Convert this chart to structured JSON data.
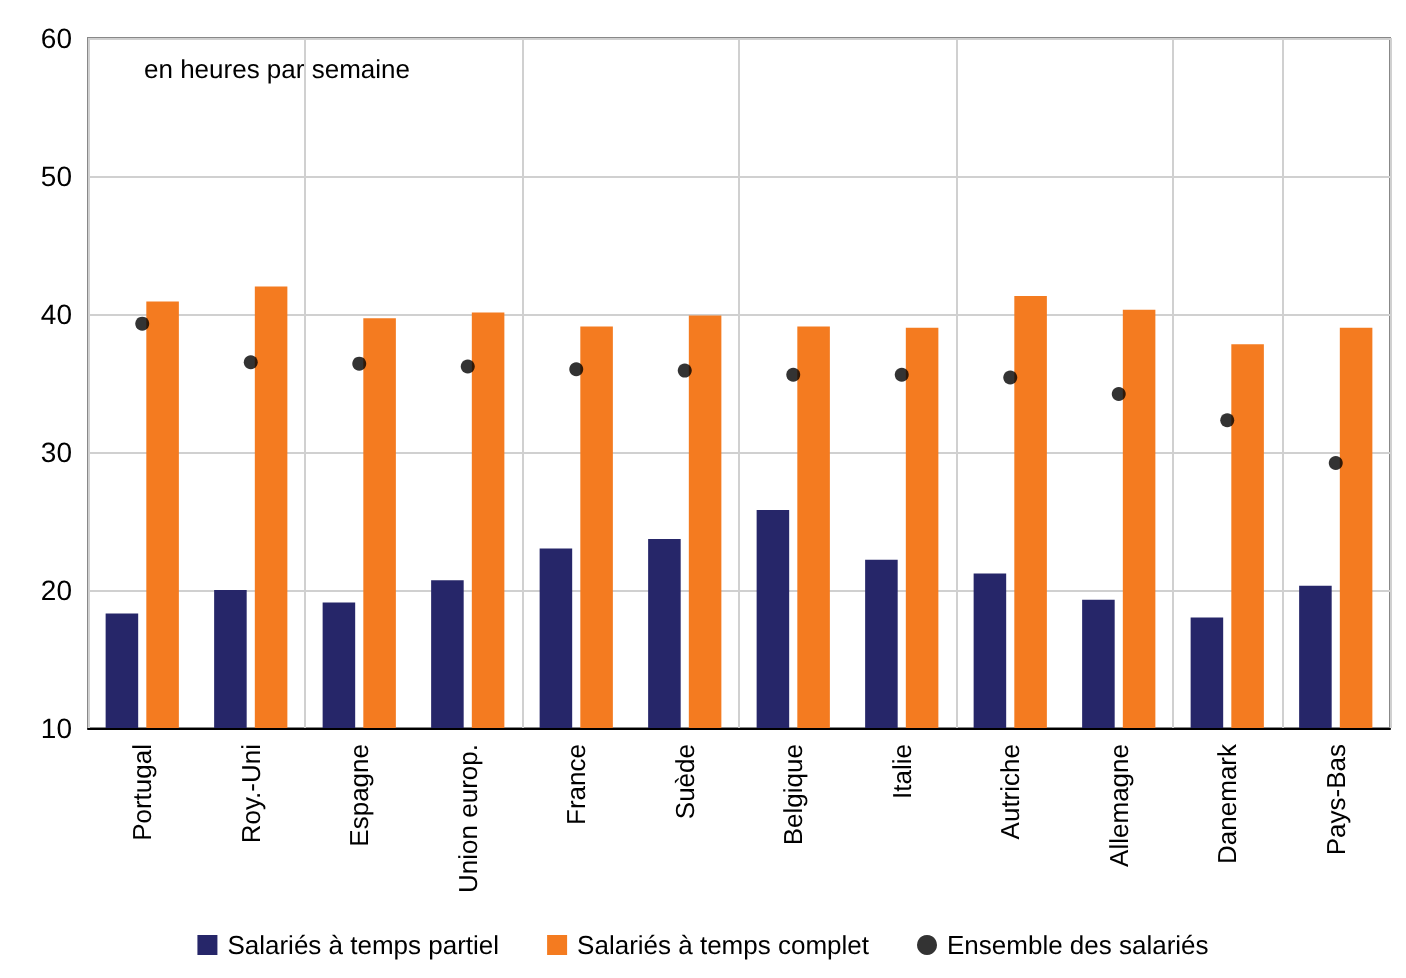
{
  "chart_data": {
    "type": "bar",
    "categories": [
      "Portugal",
      "Roy.-Uni",
      "Espagne",
      "Union europ.",
      "France",
      "Suède",
      "Belgique",
      "Italie",
      "Autriche",
      "Allemagne",
      "Danemark",
      "Pays-Bas"
    ],
    "series": [
      {
        "name": "Salariés à temps partiel",
        "color": "#262669",
        "values": [
          18.3,
          20.0,
          19.1,
          20.7,
          23.0,
          23.7,
          25.8,
          22.2,
          21.2,
          19.3,
          18.0,
          20.3
        ]
      },
      {
        "name": "Salariés à temps complet",
        "color": "#f47b20",
        "values": [
          40.9,
          42.0,
          39.7,
          40.1,
          39.1,
          39.9,
          39.1,
          39.0,
          41.3,
          40.3,
          37.8,
          39.0
        ]
      },
      {
        "name": "Ensemble des salariés",
        "type": "scatter",
        "color": "#000000",
        "marker": "circle",
        "x": [
          "Portugal",
          "Roy.-Uni",
          "Espagne",
          "Union europ.",
          "France",
          "Suède",
          "Belgique",
          "Italie",
          "Autriche",
          "Allemagne",
          "Danemark",
          "Pays-Bas"
        ],
        "values": [
          39.3,
          36.5,
          36.4,
          36.2,
          36.0,
          35.9,
          35.6,
          35.6,
          35.4,
          34.2,
          32.3,
          29.2
        ]
      }
    ],
    "ylim": [
      10,
      60
    ],
    "yticks": [
      10,
      20,
      30,
      40,
      50,
      60
    ],
    "annotations": [
      "en heures par semaine"
    ],
    "grid": true,
    "legend": "bottom"
  }
}
